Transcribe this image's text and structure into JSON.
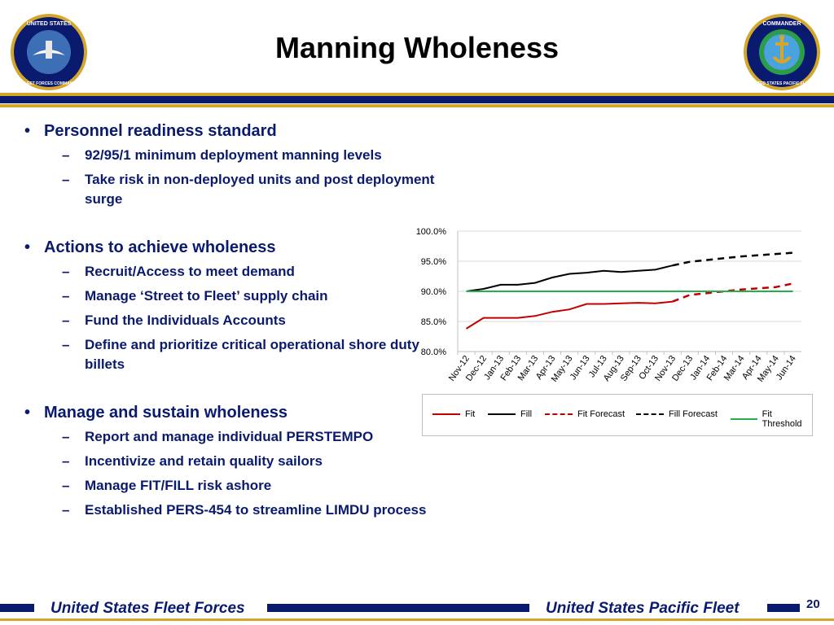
{
  "header": {
    "title": "Manning Wholeness"
  },
  "seal_left": {
    "texts": [
      "UNITED STATES",
      "FLEET FORCES COMMAND"
    ]
  },
  "seal_right": {
    "texts": [
      "COMMANDER",
      "UNITED STATES PACIFIC FLEET"
    ]
  },
  "bullets": [
    {
      "text": "Personnel readiness standard",
      "subs": [
        "92/95/1 minimum deployment manning levels",
        "Take risk in non-deployed units and post deployment surge"
      ]
    },
    {
      "text": "Actions to achieve wholeness",
      "subs": [
        "Recruit/Access to meet demand",
        "Manage ‘Street to Fleet’ supply chain",
        "Fund the Individuals Accounts",
        "Define and prioritize critical operational shore duty billets"
      ]
    },
    {
      "text": "Manage and sustain wholeness",
      "subs": [
        "Report and manage individual PERSTEMPO",
        "Incentivize and retain quality sailors",
        "Manage FIT/FILL risk ashore",
        "Established PERS-454 to streamline LIMDU process"
      ]
    }
  ],
  "chart_data": {
    "type": "line",
    "categories": [
      "Nov-12",
      "Dec-12",
      "Jan-13",
      "Feb-13",
      "Mar-13",
      "Apr-13",
      "May-13",
      "Jun-13",
      "Jul-13",
      "Aug-13",
      "Sep-13",
      "Oct-13",
      "Nov-13",
      "Dec-13",
      "Jan-14",
      "Feb-14",
      "Mar-14",
      "Apr-14",
      "May-14",
      "Jun-14"
    ],
    "y_ticks": [
      "100.0%",
      "95.0%",
      "90.0%",
      "85.0%",
      "80.0%"
    ],
    "ylim": [
      80,
      100
    ],
    "grid": true,
    "legend_position": "bottom",
    "series": [
      {
        "name": "Fit",
        "color": "#c00000",
        "dash": false,
        "values": [
          83.8,
          85.6,
          85.6,
          85.6,
          85.9,
          86.6,
          87.0,
          87.9,
          87.9,
          88.0,
          88.1,
          88.0,
          88.3,
          null,
          null,
          null,
          null,
          null,
          null,
          null
        ]
      },
      {
        "name": "Fill",
        "color": "#000000",
        "dash": false,
        "values": [
          90.0,
          90.4,
          91.1,
          91.1,
          91.4,
          92.3,
          92.9,
          93.1,
          93.4,
          93.2,
          93.4,
          93.6,
          94.3,
          null,
          null,
          null,
          null,
          null,
          null,
          null
        ]
      },
      {
        "name": "Fit Forecast",
        "color": "#c00000",
        "dash": true,
        "values": [
          null,
          null,
          null,
          null,
          null,
          null,
          null,
          null,
          null,
          null,
          null,
          null,
          88.3,
          89.4,
          89.7,
          90.0,
          90.3,
          90.5,
          90.7,
          91.3
        ]
      },
      {
        "name": "Fill Forecast",
        "color": "#000000",
        "dash": true,
        "values": [
          null,
          null,
          null,
          null,
          null,
          null,
          null,
          null,
          null,
          null,
          null,
          null,
          94.3,
          94.9,
          95.2,
          95.5,
          95.8,
          96.0,
          96.2,
          96.4
        ]
      },
      {
        "name": "Fit Threshold",
        "color": "#21b04a",
        "dash": false,
        "values": [
          90,
          90,
          90,
          90,
          90,
          90,
          90,
          90,
          90,
          90,
          90,
          90,
          90,
          90,
          90,
          90,
          90,
          90,
          90,
          90
        ]
      }
    ]
  },
  "footer": {
    "left": "United States Fleet Forces",
    "right": "United States Pacific Fleet",
    "page": "20"
  }
}
